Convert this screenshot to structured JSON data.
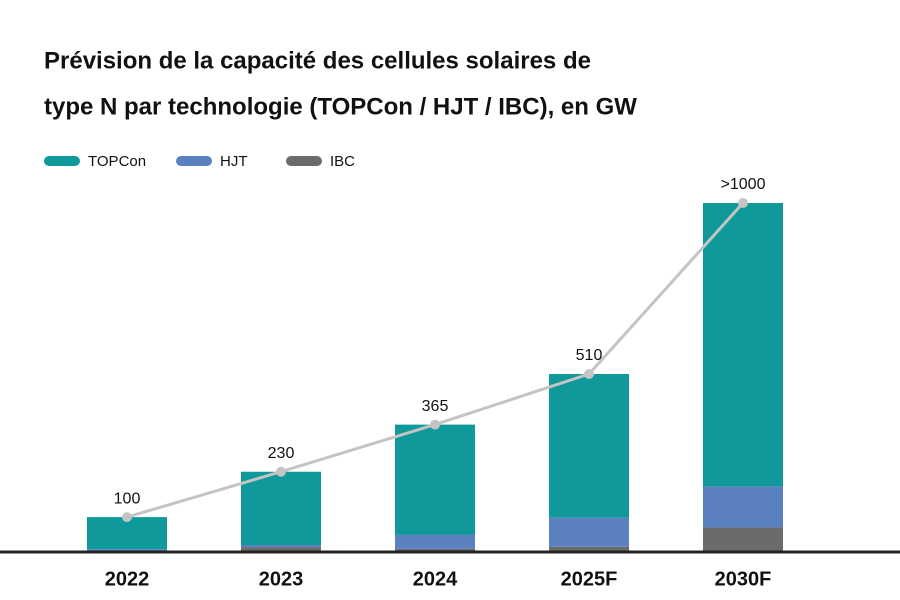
{
  "chart_data": {
    "type": "bar",
    "title": [
      "Prévision de la capacité des cellules solaires de",
      "type N par technologie (TOPCon / HJT / IBC), en GW"
    ],
    "categories": [
      "2022",
      "2023",
      "2024",
      "2025F",
      "2030F"
    ],
    "series": [
      {
        "name": "TOPCon",
        "color": "#10999a",
        "values": [
          92,
          210,
          316,
          412,
          812
        ]
      },
      {
        "name": "HJT",
        "color": "#5a80bf",
        "values": [
          4,
          6,
          40,
          83,
          118
        ]
      },
      {
        "name": "IBC",
        "color": "#6b6b6b",
        "values": [
          4,
          14,
          9,
          15,
          70
        ]
      }
    ],
    "total": {
      "color": "#c4c4c4",
      "values": [
        100,
        230,
        365,
        510,
        1000
      ],
      "value_labels": [
        "100",
        "230",
        "365",
        "510",
        ">1000"
      ]
    },
    "ylim": [
      0,
      1000
    ],
    "stacked": true
  }
}
